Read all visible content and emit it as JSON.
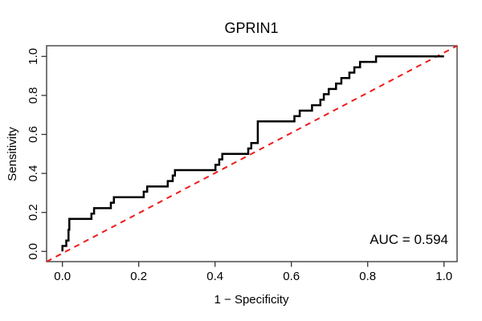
{
  "chart_data": {
    "type": "line",
    "subtype": "roc-step-curve",
    "title": "GPRIN1",
    "xlabel": "1 − Specificity",
    "ylabel": "Sensitivity",
    "xlim": [
      0,
      1
    ],
    "ylim": [
      0,
      1
    ],
    "grid": "off",
    "legend_position": "none",
    "auc": 0.594,
    "auc_annotation": "AUC = 0.594",
    "x_ticks": {
      "values": [
        0,
        0.2,
        0.4,
        0.6,
        0.8,
        1.0
      ],
      "labels": [
        "0.0",
        "0.2",
        "0.4",
        "0.6",
        "0.8",
        "1.0"
      ]
    },
    "y_ticks": {
      "values": [
        0,
        0.2,
        0.4,
        0.6,
        0.8,
        1.0
      ],
      "labels": [
        "0.0",
        "0.2",
        "0.4",
        "0.6",
        "0.8",
        "1.0"
      ]
    },
    "roc_curve": {
      "x": [
        0.0,
        0.0,
        0.01,
        0.01,
        0.016,
        0.016,
        0.018,
        0.018,
        0.076,
        0.076,
        0.083,
        0.083,
        0.127,
        0.127,
        0.135,
        0.135,
        0.213,
        0.213,
        0.222,
        0.222,
        0.276,
        0.276,
        0.289,
        0.289,
        0.295,
        0.295,
        0.401,
        0.401,
        0.411,
        0.411,
        0.419,
        0.419,
        0.487,
        0.487,
        0.495,
        0.495,
        0.512,
        0.512,
        0.608,
        0.608,
        0.622,
        0.622,
        0.654,
        0.654,
        0.676,
        0.676,
        0.685,
        0.685,
        0.698,
        0.698,
        0.717,
        0.717,
        0.731,
        0.731,
        0.752,
        0.752,
        0.765,
        0.765,
        0.78,
        0.78,
        0.822,
        0.822,
        1.0
      ],
      "y": [
        0.0,
        0.028,
        0.028,
        0.056,
        0.056,
        0.111,
        0.111,
        0.167,
        0.167,
        0.194,
        0.194,
        0.222,
        0.222,
        0.25,
        0.25,
        0.278,
        0.278,
        0.306,
        0.306,
        0.333,
        0.333,
        0.361,
        0.361,
        0.389,
        0.389,
        0.417,
        0.417,
        0.444,
        0.444,
        0.472,
        0.472,
        0.5,
        0.5,
        0.528,
        0.528,
        0.556,
        0.556,
        0.667,
        0.667,
        0.694,
        0.694,
        0.722,
        0.722,
        0.75,
        0.75,
        0.778,
        0.778,
        0.806,
        0.806,
        0.833,
        0.833,
        0.861,
        0.861,
        0.889,
        0.889,
        0.917,
        0.917,
        0.944,
        0.944,
        0.972,
        0.972,
        1.0,
        1.0
      ]
    },
    "diagonal": {
      "from": [
        0,
        0
      ],
      "to": [
        1,
        1
      ],
      "style": "dashed"
    },
    "colors": {
      "curve": "#000000",
      "diagonal": "#ef1a1a",
      "box": "#404040",
      "tick": "#333333",
      "text": "#000000"
    }
  }
}
